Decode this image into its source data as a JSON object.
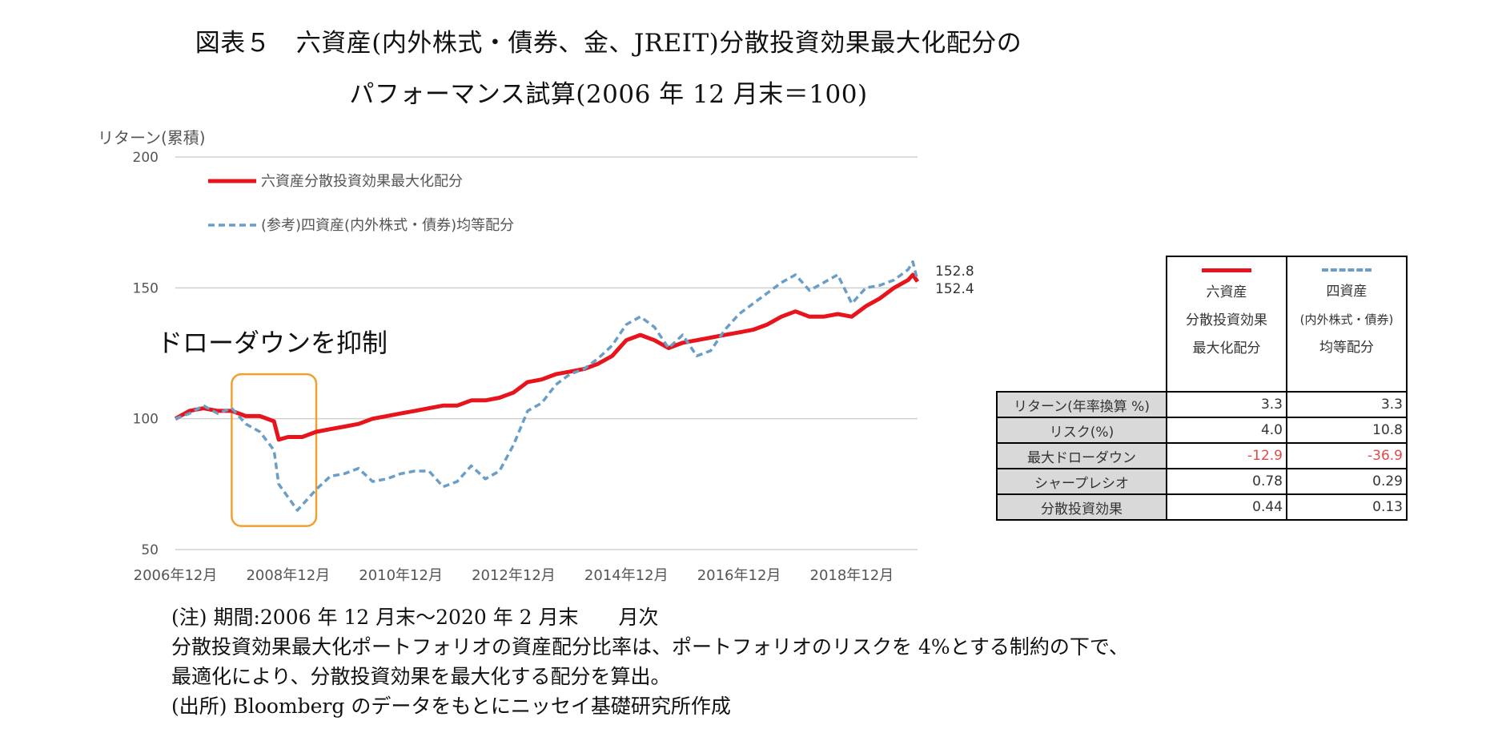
{
  "title": {
    "line1": "図表５　六資産(内外株式・債券、金、JREIT)分散投資効果最大化配分の",
    "line2": "パフォーマンス試算(2006 年 12 月末＝100)"
  },
  "chart_data": {
    "type": "line",
    "ylabel": "リターン(累積)",
    "ylim": [
      50,
      200
    ],
    "yticks": [
      50,
      100,
      150,
      200
    ],
    "x_labels": [
      "2006年12月",
      "2008年12月",
      "2010年12月",
      "2012年12月",
      "2014年12月",
      "2016年12月",
      "2018年12月"
    ],
    "x_start": "2006-12",
    "x_end": "2020-02",
    "grid": true,
    "legend_position": "top-left",
    "series": [
      {
        "name": "六資産分散投資効果最大化配分",
        "color": "#e8141c",
        "style": "solid",
        "end_label": "152.4",
        "points": [
          [
            "2006-12",
            100
          ],
          [
            "2007-03",
            103
          ],
          [
            "2007-06",
            104
          ],
          [
            "2007-09",
            103
          ],
          [
            "2007-12",
            103
          ],
          [
            "2008-03",
            101
          ],
          [
            "2008-06",
            101
          ],
          [
            "2008-09",
            99
          ],
          [
            "2008-10",
            92
          ],
          [
            "2008-12",
            93
          ],
          [
            "2009-03",
            93
          ],
          [
            "2009-06",
            95
          ],
          [
            "2009-09",
            96
          ],
          [
            "2009-12",
            97
          ],
          [
            "2010-03",
            98
          ],
          [
            "2010-06",
            100
          ],
          [
            "2010-09",
            101
          ],
          [
            "2010-12",
            102
          ],
          [
            "2011-03",
            103
          ],
          [
            "2011-06",
            104
          ],
          [
            "2011-09",
            105
          ],
          [
            "2011-12",
            105
          ],
          [
            "2012-03",
            107
          ],
          [
            "2012-06",
            107
          ],
          [
            "2012-09",
            108
          ],
          [
            "2012-12",
            110
          ],
          [
            "2013-03",
            114
          ],
          [
            "2013-06",
            115
          ],
          [
            "2013-09",
            117
          ],
          [
            "2013-12",
            118
          ],
          [
            "2014-03",
            119
          ],
          [
            "2014-06",
            121
          ],
          [
            "2014-09",
            124
          ],
          [
            "2014-12",
            130
          ],
          [
            "2015-03",
            132
          ],
          [
            "2015-06",
            130
          ],
          [
            "2015-09",
            127
          ],
          [
            "2015-12",
            129
          ],
          [
            "2016-03",
            130
          ],
          [
            "2016-06",
            131
          ],
          [
            "2016-09",
            132
          ],
          [
            "2016-12",
            133
          ],
          [
            "2017-03",
            134
          ],
          [
            "2017-06",
            136
          ],
          [
            "2017-09",
            139
          ],
          [
            "2017-12",
            141
          ],
          [
            "2018-03",
            139
          ],
          [
            "2018-06",
            139
          ],
          [
            "2018-09",
            140
          ],
          [
            "2018-12",
            139
          ],
          [
            "2019-03",
            143
          ],
          [
            "2019-06",
            146
          ],
          [
            "2019-09",
            150
          ],
          [
            "2019-12",
            153
          ],
          [
            "2020-01",
            155
          ],
          [
            "2020-02",
            152.4
          ]
        ]
      },
      {
        "name": "(参考)四資産(内外株式・債券)均等配分",
        "color": "#6a9ec7",
        "style": "dashed",
        "end_label": "152.8",
        "points": [
          [
            "2006-12",
            100
          ],
          [
            "2007-03",
            102
          ],
          [
            "2007-06",
            105
          ],
          [
            "2007-09",
            102
          ],
          [
            "2007-12",
            104
          ],
          [
            "2008-03",
            98
          ],
          [
            "2008-06",
            95
          ],
          [
            "2008-09",
            88
          ],
          [
            "2008-10",
            75
          ],
          [
            "2008-12",
            70
          ],
          [
            "2009-02",
            65
          ],
          [
            "2009-06",
            73
          ],
          [
            "2009-09",
            78
          ],
          [
            "2009-12",
            79
          ],
          [
            "2010-03",
            81
          ],
          [
            "2010-06",
            76
          ],
          [
            "2010-09",
            77
          ],
          [
            "2010-12",
            79
          ],
          [
            "2011-03",
            80
          ],
          [
            "2011-06",
            80
          ],
          [
            "2011-09",
            74
          ],
          [
            "2011-12",
            76
          ],
          [
            "2012-03",
            82
          ],
          [
            "2012-06",
            77
          ],
          [
            "2012-09",
            80
          ],
          [
            "2012-12",
            90
          ],
          [
            "2013-03",
            103
          ],
          [
            "2013-06",
            106
          ],
          [
            "2013-09",
            113
          ],
          [
            "2013-12",
            117
          ],
          [
            "2014-03",
            119
          ],
          [
            "2014-06",
            123
          ],
          [
            "2014-09",
            128
          ],
          [
            "2014-12",
            136
          ],
          [
            "2015-03",
            139
          ],
          [
            "2015-06",
            135
          ],
          [
            "2015-09",
            127
          ],
          [
            "2015-12",
            132
          ],
          [
            "2016-03",
            124
          ],
          [
            "2016-06",
            126
          ],
          [
            "2016-09",
            134
          ],
          [
            "2016-12",
            140
          ],
          [
            "2017-03",
            144
          ],
          [
            "2017-06",
            148
          ],
          [
            "2017-09",
            152
          ],
          [
            "2017-12",
            155
          ],
          [
            "2018-03",
            149
          ],
          [
            "2018-06",
            152
          ],
          [
            "2018-09",
            155
          ],
          [
            "2018-12",
            144
          ],
          [
            "2019-03",
            150
          ],
          [
            "2019-06",
            151
          ],
          [
            "2019-09",
            153
          ],
          [
            "2019-12",
            157
          ],
          [
            "2020-01",
            160
          ],
          [
            "2020-02",
            152.8
          ]
        ]
      }
    ],
    "annotations": [
      {
        "text": "ドローダウンを抑制",
        "box_x_range": [
          "2007-12",
          "2009-06"
        ],
        "box_y_range": [
          59,
          117
        ],
        "box_color": "#f0a030"
      }
    ]
  },
  "stats_table": {
    "col_headers": [
      {
        "lines": [
          "六資産",
          "分散投資効果",
          "最大化配分"
        ],
        "color": "#e8141c",
        "style": "solid"
      },
      {
        "lines": [
          "四資産",
          "(内外株式・債券)",
          "均等配分"
        ],
        "color": "#6a9ec7",
        "style": "dashed"
      }
    ],
    "rows": [
      {
        "label": "リターン(年率換算 %)",
        "values": [
          "3.3",
          "3.3"
        ],
        "negative": false
      },
      {
        "label": "リスク(%)",
        "values": [
          "4.0",
          "10.8"
        ],
        "negative": false
      },
      {
        "label": "最大ドローダウン",
        "values": [
          "-12.9",
          "-36.9"
        ],
        "negative": true
      },
      {
        "label": "シャープレシオ",
        "values": [
          "0.78",
          "0.29"
        ],
        "negative": false
      },
      {
        "label": "分散投資効果",
        "values": [
          "0.44",
          "0.13"
        ],
        "negative": false
      }
    ]
  },
  "notes": {
    "period": "(注) 期間:2006 年 12 月末～2020 年 2 月末　　月次",
    "line2": "分散投資効果最大化ポートフォリオの資産配分比率は、ポートフォリオのリスクを 4%とする制約の下で、",
    "line3": "最適化により、分散投資効果を最大化する配分を算出。",
    "source": "(出所) Bloomberg のデータをもとにニッセイ基礎研究所作成"
  }
}
